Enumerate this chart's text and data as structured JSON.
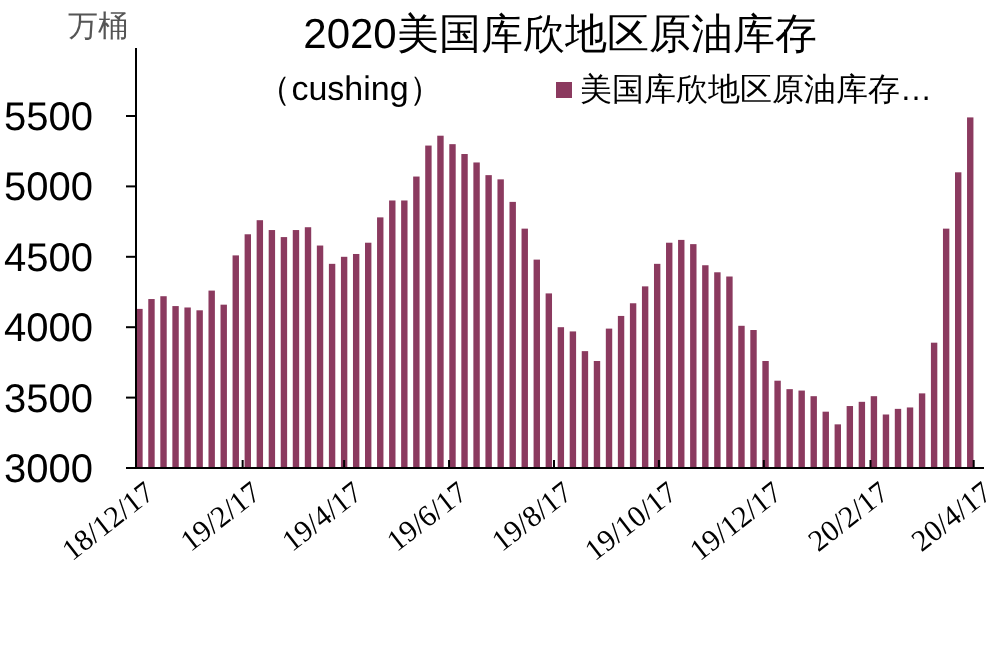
{
  "chart_data": {
    "type": "bar",
    "title": "2020美国库欣地区原油库存",
    "subtitle": "（cushing）",
    "ylabel": "万桶",
    "x": [
      "2018-12-19",
      "2018-12-26",
      "2019-01-02",
      "2019-01-09",
      "2019-01-16",
      "2019-01-23",
      "2019-01-30",
      "2019-02-06",
      "2019-02-13",
      "2019-02-20",
      "2019-02-27",
      "2019-03-06",
      "2019-03-13",
      "2019-03-20",
      "2019-03-27",
      "2019-04-03",
      "2019-04-10",
      "2019-04-17",
      "2019-04-24",
      "2019-05-01",
      "2019-05-08",
      "2019-05-15",
      "2019-05-22",
      "2019-05-29",
      "2019-06-05",
      "2019-06-12",
      "2019-06-19",
      "2019-06-26",
      "2019-07-03",
      "2019-07-10",
      "2019-07-17",
      "2019-07-24",
      "2019-07-31",
      "2019-08-07",
      "2019-08-14",
      "2019-08-21",
      "2019-08-28",
      "2019-09-04",
      "2019-09-11",
      "2019-09-18",
      "2019-09-25",
      "2019-10-02",
      "2019-10-09",
      "2019-10-16",
      "2019-10-23",
      "2019-10-30",
      "2019-11-06",
      "2019-11-13",
      "2019-11-20",
      "2019-11-27",
      "2019-12-04",
      "2019-12-11",
      "2019-12-18",
      "2019-12-25",
      "2020-01-01",
      "2020-01-08",
      "2020-01-15",
      "2020-01-22",
      "2020-01-29",
      "2020-02-05",
      "2020-02-12",
      "2020-02-19",
      "2020-02-26",
      "2020-03-04",
      "2020-03-11",
      "2020-03-18",
      "2020-03-25",
      "2020-04-01",
      "2020-04-08",
      "2020-04-15"
    ],
    "series": [
      {
        "name": "美国库欣地区原油库存…",
        "color": "#8b3a5f",
        "values": [
          4130,
          4200,
          4220,
          4150,
          4140,
          4120,
          4260,
          4160,
          4510,
          4660,
          4760,
          4690,
          4640,
          4690,
          4710,
          4580,
          4450,
          4500,
          4520,
          4600,
          4780,
          4900,
          4900,
          5070,
          5290,
          5360,
          5300,
          5230,
          5170,
          5080,
          5050,
          4890,
          4700,
          4480,
          4240,
          4000,
          3970,
          3830,
          3760,
          3990,
          4080,
          4170,
          4290,
          4450,
          4600,
          4620,
          4590,
          4440,
          4390,
          4360,
          4010,
          3980,
          3760,
          3620,
          3560,
          3550,
          3510,
          3400,
          3310,
          3440,
          3470,
          3510,
          3380,
          3420,
          3430,
          3530,
          3890,
          4700,
          5100,
          5490
        ]
      }
    ],
    "xlim": [
      "2018-12-17",
      "2020-04-23"
    ],
    "ylim": [
      3000,
      5500
    ],
    "yticks": [
      3000,
      3500,
      4000,
      4500,
      5000,
      5500
    ],
    "xticks": [
      {
        "value": "2018-12-17",
        "label": "18/12/17"
      },
      {
        "value": "2019-02-17",
        "label": "19/2/17"
      },
      {
        "value": "2019-04-17",
        "label": "19/4/17"
      },
      {
        "value": "2019-06-17",
        "label": "19/6/17"
      },
      {
        "value": "2019-08-17",
        "label": "19/8/17"
      },
      {
        "value": "2019-10-17",
        "label": "19/10/17"
      },
      {
        "value": "2019-12-17",
        "label": "19/12/17"
      },
      {
        "value": "2020-02-17",
        "label": "20/2/17"
      },
      {
        "value": "2020-04-17",
        "label": "20/4/17"
      }
    ],
    "legend": "top right"
  }
}
